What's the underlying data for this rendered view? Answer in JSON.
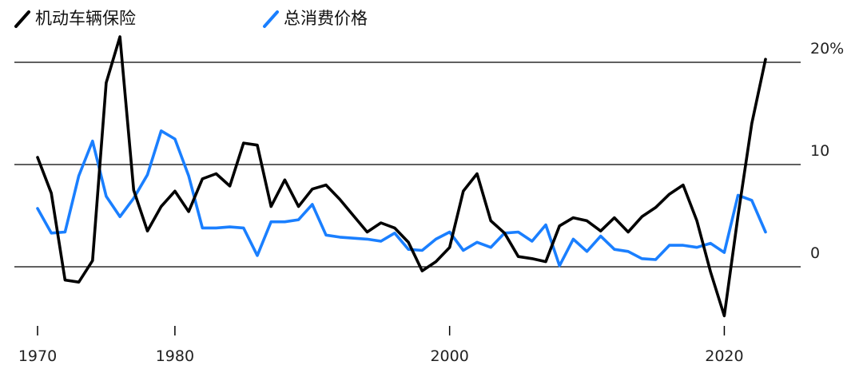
{
  "chart_data": {
    "type": "line",
    "legend_position": "top-left",
    "grid": true,
    "ylim": [
      -5,
      22
    ],
    "xlim": [
      1970,
      2025
    ],
    "y_ticks": [
      {
        "value": 20,
        "label": "20%"
      },
      {
        "value": 10,
        "label": "10"
      },
      {
        "value": 0,
        "label": "0"
      }
    ],
    "x_ticks": [
      {
        "value": 1970,
        "label": "1970"
      },
      {
        "value": 1980,
        "label": "1980"
      },
      {
        "value": 2000,
        "label": "2000"
      },
      {
        "value": 2020,
        "label": "2020"
      }
    ],
    "series": [
      {
        "name": "机动车辆保险",
        "color": "#000000",
        "points": [
          [
            1970,
            10.7
          ],
          [
            1971,
            7.2
          ],
          [
            1972,
            -1.3
          ],
          [
            1973,
            -1.5
          ],
          [
            1974,
            0.6
          ],
          [
            1975,
            18.0
          ],
          [
            1976,
            22.5
          ],
          [
            1977,
            7.5
          ],
          [
            1978,
            3.5
          ],
          [
            1979,
            5.9
          ],
          [
            1980,
            7.4
          ],
          [
            1981,
            5.4
          ],
          [
            1982,
            8.6
          ],
          [
            1983,
            9.1
          ],
          [
            1984,
            7.9
          ],
          [
            1985,
            12.1
          ],
          [
            1986,
            11.9
          ],
          [
            1987,
            5.9
          ],
          [
            1988,
            8.5
          ],
          [
            1989,
            5.9
          ],
          [
            1990,
            7.6
          ],
          [
            1991,
            8.0
          ],
          [
            1992,
            6.6
          ],
          [
            1993,
            5.0
          ],
          [
            1994,
            3.4
          ],
          [
            1995,
            4.3
          ],
          [
            1996,
            3.8
          ],
          [
            1997,
            2.4
          ],
          [
            1998,
            -0.4
          ],
          [
            1999,
            0.5
          ],
          [
            2000,
            1.9
          ],
          [
            2001,
            7.4
          ],
          [
            2002,
            9.1
          ],
          [
            2003,
            4.5
          ],
          [
            2004,
            3.3
          ],
          [
            2005,
            1.0
          ],
          [
            2006,
            0.8
          ],
          [
            2007,
            0.5
          ],
          [
            2008,
            4.0
          ],
          [
            2009,
            4.8
          ],
          [
            2010,
            4.5
          ],
          [
            2011,
            3.5
          ],
          [
            2012,
            4.8
          ],
          [
            2013,
            3.4
          ],
          [
            2014,
            4.9
          ],
          [
            2015,
            5.8
          ],
          [
            2016,
            7.1
          ],
          [
            2017,
            8.0
          ],
          [
            2018,
            4.5
          ],
          [
            2019,
            -0.5
          ],
          [
            2020,
            -4.8
          ],
          [
            2021,
            5.0
          ],
          [
            2022,
            14.0
          ],
          [
            2023,
            20.3
          ]
        ]
      },
      {
        "name": "总消费价格",
        "color": "#1a7fff",
        "points": [
          [
            1970,
            5.7
          ],
          [
            1971,
            3.3
          ],
          [
            1972,
            3.4
          ],
          [
            1973,
            8.9
          ],
          [
            1974,
            12.3
          ],
          [
            1975,
            6.9
          ],
          [
            1976,
            4.9
          ],
          [
            1977,
            6.7
          ],
          [
            1978,
            9.0
          ],
          [
            1979,
            13.3
          ],
          [
            1980,
            12.5
          ],
          [
            1981,
            8.9
          ],
          [
            1982,
            3.8
          ],
          [
            1983,
            3.8
          ],
          [
            1984,
            3.9
          ],
          [
            1985,
            3.8
          ],
          [
            1986,
            1.1
          ],
          [
            1987,
            4.4
          ],
          [
            1988,
            4.4
          ],
          [
            1989,
            4.6
          ],
          [
            1990,
            6.1
          ],
          [
            1991,
            3.1
          ],
          [
            1992,
            2.9
          ],
          [
            1993,
            2.8
          ],
          [
            1994,
            2.7
          ],
          [
            1995,
            2.5
          ],
          [
            1996,
            3.3
          ],
          [
            1997,
            1.7
          ],
          [
            1998,
            1.6
          ],
          [
            1999,
            2.7
          ],
          [
            2000,
            3.4
          ],
          [
            2001,
            1.6
          ],
          [
            2002,
            2.4
          ],
          [
            2003,
            1.9
          ],
          [
            2004,
            3.3
          ],
          [
            2005,
            3.4
          ],
          [
            2006,
            2.5
          ],
          [
            2007,
            4.1
          ],
          [
            2008,
            0.1
          ],
          [
            2009,
            2.7
          ],
          [
            2010,
            1.5
          ],
          [
            2011,
            3.0
          ],
          [
            2012,
            1.7
          ],
          [
            2013,
            1.5
          ],
          [
            2014,
            0.8
          ],
          [
            2015,
            0.7
          ],
          [
            2016,
            2.1
          ],
          [
            2017,
            2.1
          ],
          [
            2018,
            1.9
          ],
          [
            2019,
            2.3
          ],
          [
            2020,
            1.4
          ],
          [
            2021,
            7.0
          ],
          [
            2022,
            6.5
          ],
          [
            2023,
            3.4
          ]
        ]
      }
    ]
  }
}
